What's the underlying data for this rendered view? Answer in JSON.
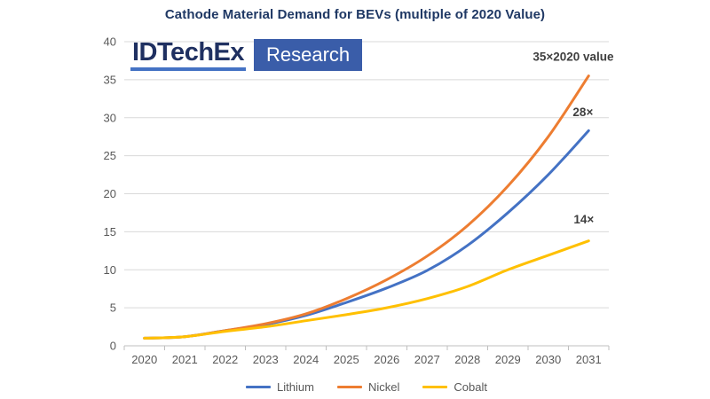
{
  "title": "Cathode Material Demand for BEVs (multiple of 2020 Value)",
  "logo": {
    "brand": "IDTechEx",
    "sub": "Research"
  },
  "chart_data": {
    "type": "line",
    "categories": [
      "2020",
      "2021",
      "2022",
      "2023",
      "2024",
      "2025",
      "2026",
      "2027",
      "2028",
      "2029",
      "2030",
      "2031"
    ],
    "series": [
      {
        "name": "Lithium",
        "color": "#4472C4",
        "values": [
          1.0,
          1.2,
          2.0,
          2.8,
          4.0,
          5.7,
          7.6,
          9.9,
          13.2,
          17.5,
          22.5,
          28.3
        ]
      },
      {
        "name": "Nickel",
        "color": "#ED7D31",
        "values": [
          1.0,
          1.2,
          2.0,
          2.9,
          4.2,
          6.2,
          8.7,
          11.8,
          15.8,
          21.0,
          27.5,
          35.5
        ]
      },
      {
        "name": "Cobalt",
        "color": "#FFC000",
        "values": [
          1.0,
          1.2,
          1.9,
          2.5,
          3.3,
          4.1,
          5.0,
          6.2,
          7.8,
          10.0,
          11.9,
          13.8
        ]
      }
    ],
    "title": "Cathode Material Demand for BEVs (multiple of 2020 Value)",
    "xlabel": "",
    "ylabel": "",
    "ylim": [
      0,
      40
    ],
    "yticks": [
      0,
      5,
      10,
      15,
      20,
      25,
      30,
      35,
      40
    ],
    "grid": true,
    "legend_position": "bottom",
    "annotations": [
      {
        "label": "35×2020 value",
        "year_index": 10.62,
        "value": 37.5
      },
      {
        "label": "28×",
        "year_index": 10.86,
        "value": 30.2
      },
      {
        "label": "14×",
        "year_index": 10.88,
        "value": 16.1
      }
    ]
  },
  "colors": {
    "title": "#1F3864",
    "axis_text": "#595959",
    "gridline": "#D9D9D9",
    "axis_line": "#BFBFBF",
    "annotation": "#3F3F3F",
    "logo_brand": "#1F3061",
    "logo_underline": "#4472C4",
    "logo_box": "#3A5DA9"
  }
}
